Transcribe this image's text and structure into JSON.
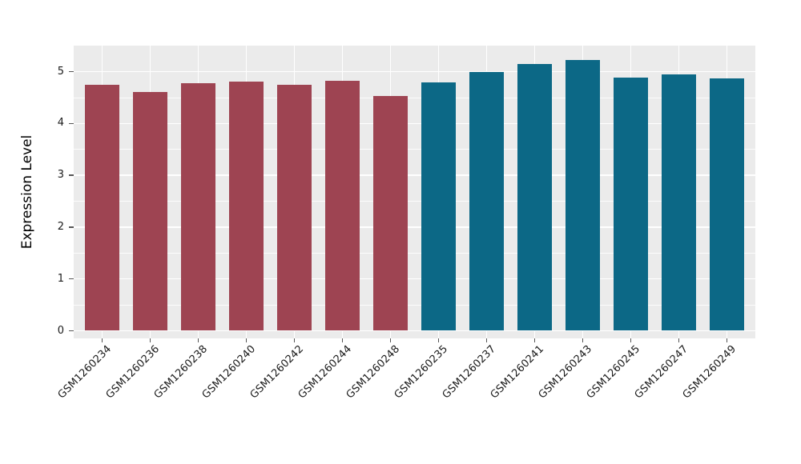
{
  "chart_data": {
    "type": "bar",
    "title": "",
    "xlabel": "",
    "ylabel": "Expression Level",
    "categories": [
      "GSM1260234",
      "GSM1260236",
      "GSM1260238",
      "GSM1260240",
      "GSM1260242",
      "GSM1260244",
      "GSM1260248",
      "GSM1260235",
      "GSM1260237",
      "GSM1260241",
      "GSM1260243",
      "GSM1260245",
      "GSM1260247",
      "GSM1260249"
    ],
    "values": [
      4.75,
      4.61,
      4.77,
      4.81,
      4.74,
      4.83,
      4.53,
      4.79,
      4.99,
      5.14,
      5.23,
      4.88,
      4.95,
      4.87
    ],
    "bar_colors": [
      "#9E4452",
      "#9E4452",
      "#9E4452",
      "#9E4452",
      "#9E4452",
      "#9E4452",
      "#9E4452",
      "#0C6886",
      "#0C6886",
      "#0C6886",
      "#0C6886",
      "#0C6886",
      "#0C6886",
      "#0C6886"
    ],
    "ylim": [
      0,
      5.49
    ],
    "yticks": [
      "0",
      "1",
      "2",
      "3",
      "4",
      "5"
    ],
    "ytick_values": [
      0,
      1,
      2,
      3,
      4,
      5
    ],
    "yticks_minor": [
      0.5,
      1.5,
      2.5,
      3.5,
      4.5
    ],
    "x_tick_rotation_deg": 45,
    "grid": "horizontal major+minor, vertical major per category",
    "legend": "none"
  },
  "style": {
    "page_bg": "#FFFFFF",
    "panel_bg": "#EBEBEB",
    "grid_major_color": "#FFFFFF",
    "grid_minor_color": "#FFFFFF",
    "tick_mark_color": "#555555",
    "tick_label_color": "#1A1A1A",
    "axis_title_color": "#000000",
    "bar_color_group1": "#9E4452",
    "bar_color_group2": "#0C6886"
  }
}
